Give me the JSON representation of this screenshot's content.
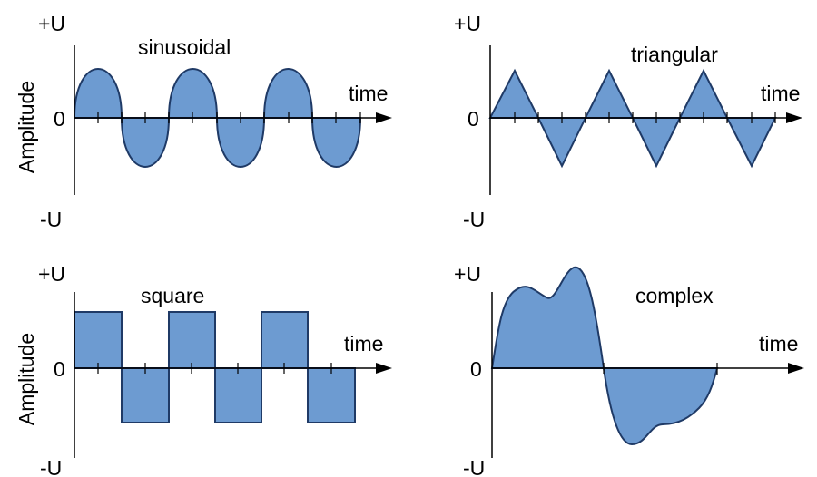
{
  "panels": {
    "sinusoidal": {
      "title": "sinusoidal",
      "plus": "+U",
      "zero": "0",
      "minus": "-U",
      "time": "time",
      "ylabel": "Amplitude"
    },
    "triangular": {
      "title": "triangular",
      "plus": "+U",
      "zero": "0",
      "minus": "-U",
      "time": "time"
    },
    "square": {
      "title": "square",
      "plus": "+U",
      "zero": "0",
      "minus": "-U",
      "time": "time",
      "ylabel": "Amplitude"
    },
    "complex": {
      "title": "complex",
      "plus": "+U",
      "zero": "0",
      "minus": "-U",
      "time": "time"
    }
  },
  "colors": {
    "fill": "#6d9bd1",
    "stroke": "#1f3a66",
    "axis": "#000000"
  }
}
